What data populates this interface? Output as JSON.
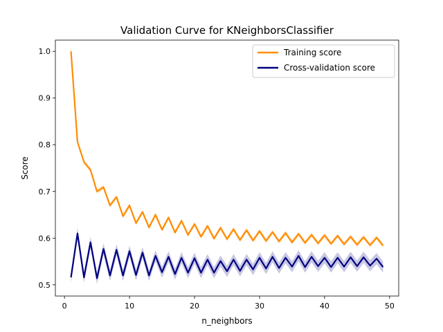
{
  "chart_data": {
    "type": "line",
    "title": "Validation Curve for KNeighborsClassifier",
    "xlabel": "n_neighbors",
    "ylabel": "Score",
    "xlim": [
      -1.4,
      51.4
    ],
    "ylim": [
      0.476,
      1.024
    ],
    "xticks": [
      0,
      10,
      20,
      30,
      40,
      50
    ],
    "yticks": [
      0.5,
      0.6,
      0.7,
      0.8,
      0.9,
      1.0
    ],
    "xtick_labels": [
      "0",
      "10",
      "20",
      "30",
      "40",
      "50"
    ],
    "ytick_labels": [
      "0.5",
      "0.6",
      "0.7",
      "0.8",
      "0.9",
      "1.0"
    ],
    "grid": false,
    "legend_position": "top-right",
    "x": [
      1,
      2,
      3,
      4,
      5,
      6,
      7,
      8,
      9,
      10,
      11,
      12,
      13,
      14,
      15,
      16,
      17,
      18,
      19,
      20,
      21,
      22,
      23,
      24,
      25,
      26,
      27,
      28,
      29,
      30,
      31,
      32,
      33,
      34,
      35,
      36,
      37,
      38,
      39,
      40,
      41,
      42,
      43,
      44,
      45,
      46,
      47,
      48,
      49
    ],
    "series": [
      {
        "name": "Training score",
        "color": "#ff8c00",
        "band_color": "#ff8c00",
        "values": [
          1.0,
          0.806,
          0.763,
          0.746,
          0.7,
          0.709,
          0.67,
          0.688,
          0.647,
          0.67,
          0.632,
          0.656,
          0.623,
          0.65,
          0.618,
          0.644,
          0.612,
          0.637,
          0.607,
          0.63,
          0.603,
          0.626,
          0.599,
          0.622,
          0.598,
          0.619,
          0.596,
          0.617,
          0.595,
          0.615,
          0.594,
          0.613,
          0.593,
          0.611,
          0.591,
          0.609,
          0.59,
          0.607,
          0.589,
          0.606,
          0.588,
          0.605,
          0.587,
          0.603,
          0.586,
          0.602,
          0.585,
          0.601,
          0.584
        ],
        "band": 0.005
      },
      {
        "name": "Cross-validation score",
        "color": "#000080",
        "band_color": "#000080",
        "values": [
          0.516,
          0.61,
          0.516,
          0.591,
          0.514,
          0.577,
          0.52,
          0.575,
          0.52,
          0.572,
          0.521,
          0.569,
          0.52,
          0.562,
          0.527,
          0.56,
          0.523,
          0.558,
          0.526,
          0.557,
          0.526,
          0.554,
          0.526,
          0.551,
          0.529,
          0.554,
          0.53,
          0.554,
          0.533,
          0.558,
          0.535,
          0.56,
          0.536,
          0.558,
          0.539,
          0.562,
          0.538,
          0.56,
          0.54,
          0.558,
          0.538,
          0.558,
          0.539,
          0.559,
          0.54,
          0.559,
          0.541,
          0.556,
          0.538
        ],
        "band": 0.012
      }
    ]
  }
}
